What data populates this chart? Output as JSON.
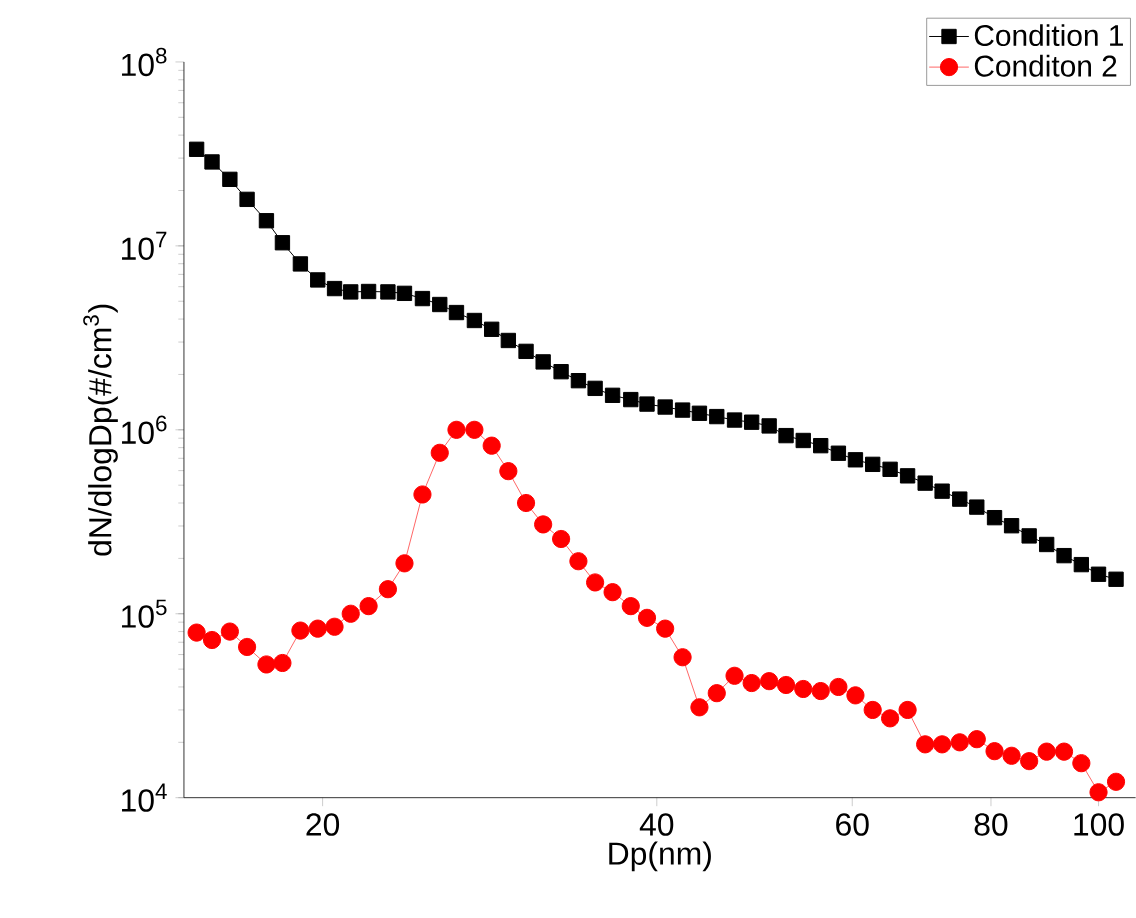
{
  "chart_data": {
    "type": "line",
    "xlabel": "Dp(nm)",
    "ylabel": "dN/dlogDp(#/cm$^{3}$)",
    "x": [
      15.4,
      15.9,
      16.5,
      17.1,
      17.8,
      18.4,
      19.1,
      19.8,
      20.5,
      21.2,
      22.0,
      22.9,
      23.7,
      24.6,
      25.5,
      26.4,
      27.4,
      28.4,
      29.4,
      30.5,
      31.6,
      32.8,
      34.0,
      35.2,
      36.5,
      37.9,
      39.2,
      40.7,
      42.2,
      43.7,
      45.3,
      47.0,
      48.7,
      50.5,
      52.3,
      54.2,
      56.2,
      58.3,
      60.4,
      62.6,
      64.9,
      67.3,
      69.8,
      72.3,
      75.0,
      77.7,
      80.6,
      83.5,
      86.6,
      89.8,
      93.1,
      96.5,
      100.0,
      103.7
    ],
    "series": [
      {
        "name": "Condition 1",
        "color": "#000000",
        "marker": "square",
        "values": [
          33500000,
          28600000,
          23000000,
          17900000,
          13700000,
          10400000,
          7980000,
          6530000,
          5860000,
          5620000,
          5650000,
          5620000,
          5520000,
          5170000,
          4800000,
          4340000,
          3930000,
          3520000,
          3060000,
          2670000,
          2340000,
          2070000,
          1850000,
          1680000,
          1540000,
          1460000,
          1380000,
          1330000,
          1280000,
          1230000,
          1180000,
          1130000,
          1100000,
          1050000,
          930000,
          875000,
          820000,
          746000,
          687000,
          649000,
          610000,
          562000,
          513000,
          464000,
          420000,
          380000,
          333000,
          301000,
          265000,
          238000,
          207000,
          185000,
          164000,
          154000
        ]
      },
      {
        "name": "Conditon 2",
        "color": "#ff0000",
        "marker": "circle",
        "values": [
          79000,
          72000,
          80000,
          66000,
          53000,
          54000,
          81000,
          83000,
          85000,
          100000,
          110000,
          136000,
          188000,
          445000,
          750000,
          1000000,
          1000000,
          820000,
          596000,
          400000,
          306000,
          255000,
          193000,
          148000,
          131000,
          110000,
          95000,
          83000,
          58000,
          31000,
          37000,
          46000,
          42000,
          43000,
          41000,
          39000,
          38000,
          40000,
          36000,
          30000,
          27000,
          30000,
          19500,
          19500,
          20000,
          20800,
          17900,
          16900,
          15800,
          17800,
          17800,
          15400,
          10700,
          12200
        ]
      }
    ],
    "log": "xy",
    "xlim": [
      15,
      108
    ],
    "xticks": [
      20,
      40,
      60,
      80,
      100
    ],
    "ylim": [
      10000,
      100000000
    ],
    "yticks": [
      {
        "value": 10000,
        "label": "10$^{4}$"
      },
      {
        "value": 100000,
        "label": "10$^{5}$"
      },
      {
        "value": 1000000,
        "label": "10$^{6}$"
      },
      {
        "value": 10000000,
        "label": "10$^{7}$"
      },
      {
        "value": 100000000,
        "label": "10$^{8}$"
      }
    ],
    "legend": "top right",
    "grid": false,
    "line_style": "solid"
  }
}
